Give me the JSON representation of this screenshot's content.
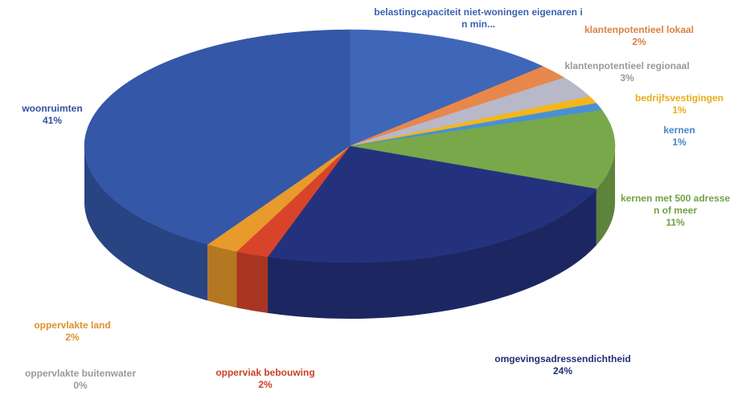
{
  "chart_data": {
    "type": "pie3d",
    "categories": [
      "belastingcapaciteit niet-woningen eigenaren in min...",
      "klantenpotentieel lokaal",
      "klantenpotentieel regionaal",
      "bedrijfsvestigingen",
      "kernen",
      "kernen met 500 adressen of meer",
      "omgevingsadressendichtheid",
      "opperviak bebouwing",
      "oppervlakte land",
      "oppervlakte buitenwater",
      "woonruimten"
    ],
    "values": [
      13,
      2,
      3,
      1,
      1,
      11,
      24,
      2,
      2,
      0,
      41
    ],
    "value_labels": [
      null,
      "2%",
      "3%",
      "1%",
      "1%",
      "11%",
      "24%",
      "2%",
      "2%",
      "0%",
      "41%"
    ],
    "colors": [
      "#3f67b9",
      "#e8874a",
      "#b8b8c8",
      "#f3b719",
      "#4a8fd6",
      "#78a84a",
      "#24327e",
      "#d8442a",
      "#e89a2c",
      "#9e9e9e",
      "#3557a8"
    ]
  }
}
